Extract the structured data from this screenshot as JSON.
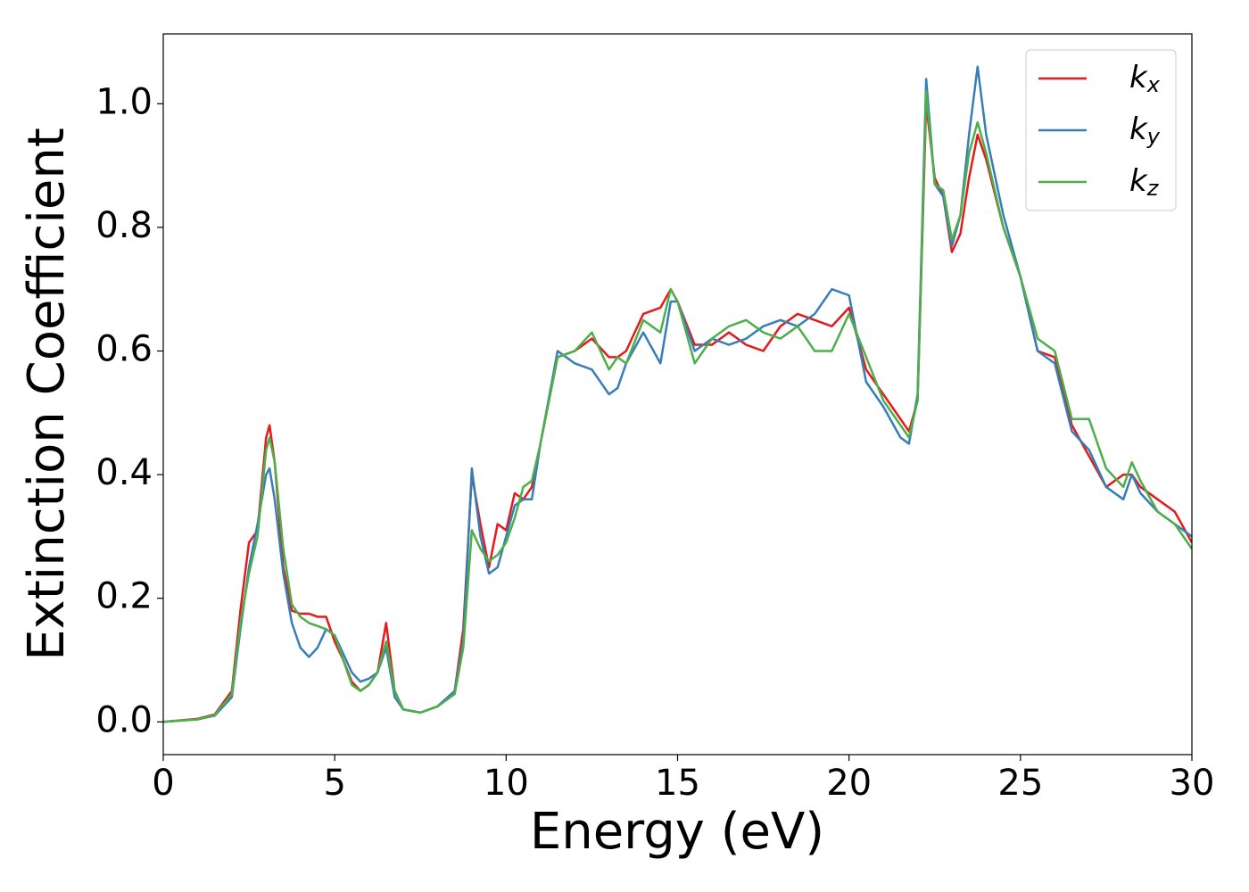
{
  "chart_data": {
    "type": "line",
    "xlabel": "Energy (eV)",
    "ylabel": "Extinction Coefficient",
    "x": [
      0,
      1,
      1.5,
      2,
      2.25,
      2.5,
      2.75,
      3,
      3.1,
      3.25,
      3.5,
      3.75,
      4,
      4.25,
      4.5,
      4.75,
      5,
      5.25,
      5.5,
      5.75,
      6,
      6.25,
      6.5,
      6.75,
      7,
      7.5,
      8,
      8.5,
      8.75,
      9,
      9.25,
      9.5,
      9.75,
      10,
      10.25,
      10.5,
      10.75,
      11,
      11.5,
      12,
      12.5,
      13,
      13.25,
      13.5,
      14,
      14.5,
      14.8,
      15,
      15.5,
      16,
      16.5,
      17,
      17.5,
      18,
      18.5,
      19,
      19.5,
      20,
      20.5,
      21,
      21.5,
      21.75,
      22,
      22.25,
      22.5,
      22.75,
      23,
      23.25,
      23.5,
      23.75,
      24,
      24.5,
      25,
      25.5,
      26,
      26.5,
      27,
      27.5,
      28,
      28.25,
      28.5,
      29,
      29.5,
      30
    ],
    "series": [
      {
        "name": "kx",
        "color": "#e41a1c",
        "values": [
          0,
          0.005,
          0.012,
          0.05,
          0.18,
          0.29,
          0.31,
          0.46,
          0.48,
          0.42,
          0.25,
          0.18,
          0.175,
          0.175,
          0.17,
          0.17,
          0.13,
          0.1,
          0.065,
          0.05,
          0.06,
          0.08,
          0.16,
          0.05,
          0.02,
          0.015,
          0.025,
          0.05,
          0.15,
          0.4,
          0.32,
          0.25,
          0.32,
          0.31,
          0.37,
          0.36,
          0.38,
          0.45,
          0.59,
          0.6,
          0.62,
          0.59,
          0.59,
          0.6,
          0.66,
          0.67,
          0.7,
          0.68,
          0.61,
          0.61,
          0.63,
          0.61,
          0.6,
          0.64,
          0.66,
          0.65,
          0.64,
          0.67,
          0.57,
          0.53,
          0.49,
          0.47,
          0.52,
          1.0,
          0.88,
          0.85,
          0.76,
          0.79,
          0.88,
          0.95,
          0.91,
          0.8,
          0.72,
          0.6,
          0.59,
          0.48,
          0.43,
          0.38,
          0.4,
          0.4,
          0.38,
          0.36,
          0.34,
          0.29
        ]
      },
      {
        "name": "ky",
        "color": "#377eb8",
        "values": [
          0,
          0.004,
          0.01,
          0.04,
          0.15,
          0.25,
          0.32,
          0.4,
          0.41,
          0.36,
          0.24,
          0.16,
          0.12,
          0.105,
          0.12,
          0.15,
          0.14,
          0.11,
          0.08,
          0.065,
          0.07,
          0.08,
          0.12,
          0.04,
          0.02,
          0.015,
          0.025,
          0.05,
          0.13,
          0.41,
          0.3,
          0.24,
          0.25,
          0.3,
          0.35,
          0.36,
          0.36,
          0.45,
          0.6,
          0.58,
          0.57,
          0.53,
          0.54,
          0.58,
          0.63,
          0.58,
          0.68,
          0.68,
          0.6,
          0.62,
          0.61,
          0.62,
          0.64,
          0.65,
          0.64,
          0.66,
          0.7,
          0.69,
          0.55,
          0.51,
          0.46,
          0.45,
          0.53,
          1.04,
          0.87,
          0.85,
          0.77,
          0.82,
          0.95,
          1.06,
          0.95,
          0.82,
          0.72,
          0.6,
          0.58,
          0.47,
          0.44,
          0.38,
          0.36,
          0.4,
          0.37,
          0.34,
          0.32,
          0.3
        ]
      },
      {
        "name": "kz",
        "color": "#4daf4a",
        "values": [
          0,
          0.004,
          0.011,
          0.045,
          0.16,
          0.24,
          0.3,
          0.44,
          0.46,
          0.42,
          0.28,
          0.19,
          0.17,
          0.16,
          0.155,
          0.15,
          0.14,
          0.1,
          0.06,
          0.05,
          0.06,
          0.08,
          0.13,
          0.05,
          0.02,
          0.015,
          0.025,
          0.045,
          0.12,
          0.31,
          0.28,
          0.26,
          0.27,
          0.29,
          0.33,
          0.38,
          0.39,
          0.45,
          0.59,
          0.6,
          0.63,
          0.57,
          0.59,
          0.58,
          0.65,
          0.63,
          0.7,
          0.68,
          0.58,
          0.62,
          0.64,
          0.65,
          0.63,
          0.62,
          0.64,
          0.6,
          0.6,
          0.66,
          0.59,
          0.52,
          0.48,
          0.46,
          0.52,
          1.02,
          0.87,
          0.86,
          0.78,
          0.82,
          0.92,
          0.97,
          0.92,
          0.8,
          0.72,
          0.62,
          0.6,
          0.49,
          0.49,
          0.41,
          0.38,
          0.42,
          0.39,
          0.34,
          0.32,
          0.28
        ]
      }
    ],
    "xlim": [
      0,
      30
    ],
    "xticks": [
      0,
      5,
      10,
      15,
      20,
      25,
      30
    ],
    "ylim": [
      -0.053,
      1.113
    ],
    "yticks": [
      {
        "value": 0,
        "label": "0.0"
      },
      {
        "value": 0.2,
        "label": "0.2"
      },
      {
        "value": 0.4,
        "label": "0.4"
      },
      {
        "value": 0.6,
        "label": "0.6"
      },
      {
        "value": 0.8,
        "label": "0.8"
      },
      {
        "value": 1.0,
        "label": "1.0"
      }
    ],
    "legend": "upper right",
    "grid": false
  }
}
